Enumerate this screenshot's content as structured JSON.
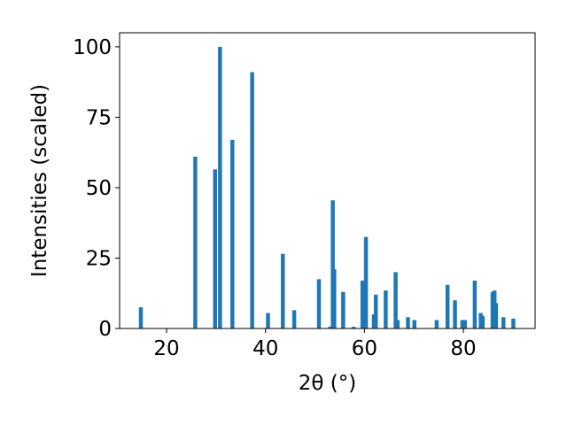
{
  "chart_data": {
    "type": "bar",
    "title": "",
    "xlabel": "2θ (°)",
    "ylabel": "Intensities (scaled)",
    "xlim": [
      10.5,
      94.5
    ],
    "ylim": [
      0,
      105
    ],
    "x_ticks": [
      20,
      40,
      60,
      80
    ],
    "y_ticks": [
      0,
      25,
      50,
      75,
      100
    ],
    "x_tick_labels": [
      "20",
      "40",
      "60",
      "80"
    ],
    "y_tick_labels": [
      "0",
      "25",
      "50",
      "75",
      "100"
    ],
    "grid": false,
    "bar_color": "#1f77b4",
    "bar_width_deg": 0.8,
    "peaks": [
      {
        "x": 14.8,
        "y": 7.5
      },
      {
        "x": 25.8,
        "y": 61
      },
      {
        "x": 29.8,
        "y": 56.5
      },
      {
        "x": 30.8,
        "y": 100
      },
      {
        "x": 33.3,
        "y": 67
      },
      {
        "x": 37.3,
        "y": 91
      },
      {
        "x": 40.5,
        "y": 5.5
      },
      {
        "x": 43.5,
        "y": 26.5
      },
      {
        "x": 45.8,
        "y": 6.5
      },
      {
        "x": 50.8,
        "y": 17.5
      },
      {
        "x": 53.1,
        "y": 0.7
      },
      {
        "x": 53.6,
        "y": 45.5
      },
      {
        "x": 53.9,
        "y": 21
      },
      {
        "x": 55.7,
        "y": 13
      },
      {
        "x": 57.8,
        "y": 0.6
      },
      {
        "x": 59.6,
        "y": 17
      },
      {
        "x": 60.3,
        "y": 32.5
      },
      {
        "x": 61.9,
        "y": 5
      },
      {
        "x": 62.3,
        "y": 12
      },
      {
        "x": 64.3,
        "y": 13.5
      },
      {
        "x": 66.3,
        "y": 20
      },
      {
        "x": 66.7,
        "y": 3
      },
      {
        "x": 68.8,
        "y": 4
      },
      {
        "x": 70.1,
        "y": 3
      },
      {
        "x": 74.6,
        "y": 3
      },
      {
        "x": 76.8,
        "y": 15.5
      },
      {
        "x": 78.3,
        "y": 10
      },
      {
        "x": 79.8,
        "y": 3
      },
      {
        "x": 80.3,
        "y": 3
      },
      {
        "x": 82.3,
        "y": 17
      },
      {
        "x": 83.5,
        "y": 5.5
      },
      {
        "x": 83.9,
        "y": 4.5
      },
      {
        "x": 85.9,
        "y": 13
      },
      {
        "x": 86.3,
        "y": 13.5
      },
      {
        "x": 86.6,
        "y": 9
      },
      {
        "x": 88.1,
        "y": 4
      },
      {
        "x": 90.1,
        "y": 3.5
      }
    ]
  }
}
